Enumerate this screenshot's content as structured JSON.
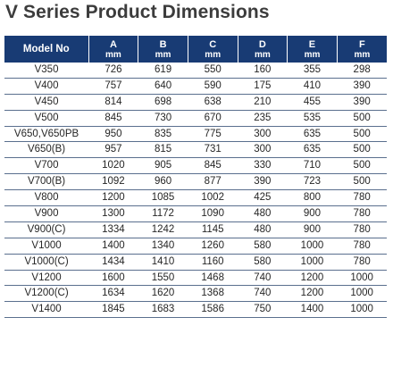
{
  "title": "V Series Product Dimensions",
  "table": {
    "header_bg": "#183b74",
    "header_text_color": "#ffffff",
    "columns": [
      {
        "key": "model",
        "label": "Model No"
      },
      {
        "key": "A",
        "label": "A",
        "unit": "mm"
      },
      {
        "key": "B",
        "label": "B",
        "unit": "mm"
      },
      {
        "key": "C",
        "label": "C",
        "unit": "mm"
      },
      {
        "key": "D",
        "label": "D",
        "unit": "mm"
      },
      {
        "key": "E",
        "label": "E",
        "unit": "mm"
      },
      {
        "key": "F",
        "label": "F",
        "unit": "mm"
      }
    ],
    "rows": [
      [
        "V350",
        "726",
        "619",
        "550",
        "160",
        "355",
        "298"
      ],
      [
        "V400",
        "757",
        "640",
        "590",
        "175",
        "410",
        "390"
      ],
      [
        "V450",
        "814",
        "698",
        "638",
        "210",
        "455",
        "390"
      ],
      [
        "V500",
        "845",
        "730",
        "670",
        "235",
        "535",
        "500"
      ],
      [
        "V650,V650PB",
        "950",
        "835",
        "775",
        "300",
        "635",
        "500"
      ],
      [
        "V650(B)",
        "957",
        "815",
        "731",
        "300",
        "635",
        "500"
      ],
      [
        "V700",
        "1020",
        "905",
        "845",
        "330",
        "710",
        "500"
      ],
      [
        "V700(B)",
        "1092",
        "960",
        "877",
        "390",
        "723",
        "500"
      ],
      [
        "V800",
        "1200",
        "1085",
        "1002",
        "425",
        "800",
        "780"
      ],
      [
        "V900",
        "1300",
        "1172",
        "1090",
        "480",
        "900",
        "780"
      ],
      [
        "V900(C)",
        "1334",
        "1242",
        "1145",
        "480",
        "900",
        "780"
      ],
      [
        "V1000",
        "1400",
        "1340",
        "1260",
        "580",
        "1000",
        "780"
      ],
      [
        "V1000(C)",
        "1434",
        "1410",
        "1160",
        "580",
        "1000",
        "780"
      ],
      [
        "V1200",
        "1600",
        "1550",
        "1468",
        "740",
        "1200",
        "1000"
      ],
      [
        "V1200(C)",
        "1634",
        "1620",
        "1368",
        "740",
        "1200",
        "1000"
      ],
      [
        "V1400",
        "1845",
        "1683",
        "1586",
        "750",
        "1400",
        "1000"
      ]
    ]
  }
}
